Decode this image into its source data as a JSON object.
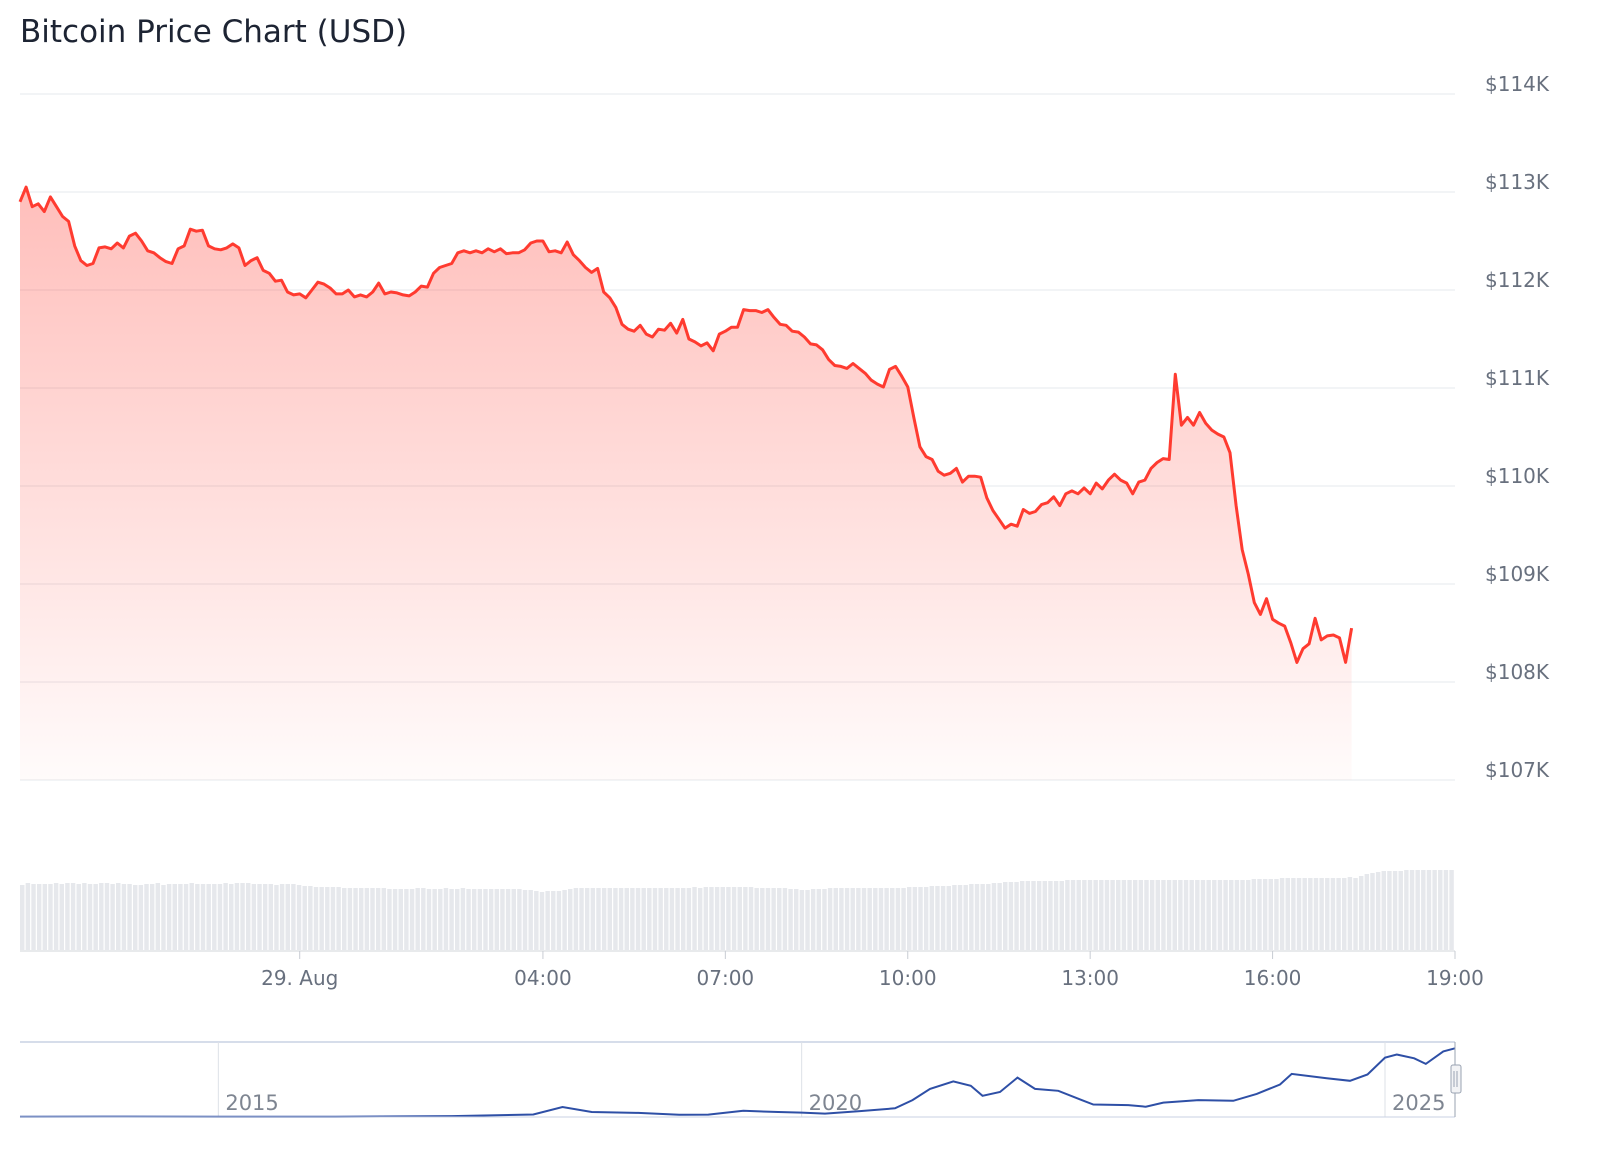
{
  "chart_data": {
    "type": "area",
    "title": "Bitcoin Price Chart (USD)",
    "currency": "USD",
    "ylim": [
      107000,
      114000
    ],
    "y_ticks": [
      "$107K",
      "$108K",
      "$109K",
      "$110K",
      "$111K",
      "$112K",
      "$113K",
      "$114K"
    ],
    "x_ticks": [
      {
        "label": "29. Aug",
        "t": 0.0
      },
      {
        "label": "04:00",
        "t": 4.0
      },
      {
        "label": "07:00",
        "t": 7.0
      },
      {
        "label": "10:00",
        "t": 10.0
      },
      {
        "label": "13:00",
        "t": 13.0
      },
      {
        "label": "16:00",
        "t": 16.0
      },
      {
        "label": "19:00",
        "t": 19.0
      }
    ],
    "x_unit": "hours",
    "x_start": -4.6,
    "x_end": 19.0,
    "grid": true,
    "series": [
      {
        "color": "#ff3b30",
        "points": [
          [
            -4.6,
            112900
          ],
          [
            -4.5,
            113050
          ],
          [
            -4.4,
            112850
          ],
          [
            -4.3,
            112880
          ],
          [
            -4.2,
            112800
          ],
          [
            -4.1,
            112950
          ],
          [
            -4.0,
            112850
          ],
          [
            -3.9,
            112750
          ],
          [
            -3.8,
            112700
          ],
          [
            -3.7,
            112450
          ],
          [
            -3.6,
            112300
          ],
          [
            -3.5,
            112250
          ],
          [
            -3.4,
            112270
          ],
          [
            -3.3,
            112430
          ],
          [
            -3.2,
            112440
          ],
          [
            -3.1,
            112420
          ],
          [
            -3.0,
            112480
          ],
          [
            -2.9,
            112430
          ],
          [
            -2.8,
            112550
          ],
          [
            -2.7,
            112580
          ],
          [
            -2.6,
            112500
          ],
          [
            -2.5,
            112400
          ],
          [
            -2.4,
            112380
          ],
          [
            -2.3,
            112330
          ],
          [
            -2.2,
            112290
          ],
          [
            -2.1,
            112270
          ],
          [
            -2.0,
            112420
          ],
          [
            -1.9,
            112450
          ],
          [
            -1.8,
            112620
          ],
          [
            -1.7,
            112600
          ],
          [
            -1.6,
            112610
          ],
          [
            -1.5,
            112450
          ],
          [
            -1.4,
            112420
          ],
          [
            -1.3,
            112410
          ],
          [
            -1.2,
            112430
          ],
          [
            -1.1,
            112470
          ],
          [
            -1.0,
            112430
          ],
          [
            -0.9,
            112250
          ],
          [
            -0.8,
            112300
          ],
          [
            -0.7,
            112330
          ],
          [
            -0.6,
            112200
          ],
          [
            -0.5,
            112170
          ],
          [
            -0.4,
            112090
          ],
          [
            -0.3,
            112100
          ],
          [
            -0.2,
            111980
          ],
          [
            -0.1,
            111950
          ],
          [
            0.0,
            111960
          ],
          [
            0.1,
            111920
          ],
          [
            0.2,
            112000
          ],
          [
            0.3,
            112080
          ],
          [
            0.4,
            112060
          ],
          [
            0.5,
            112020
          ],
          [
            0.6,
            111960
          ],
          [
            0.7,
            111960
          ],
          [
            0.8,
            112000
          ],
          [
            0.9,
            111930
          ],
          [
            1.0,
            111950
          ],
          [
            1.1,
            111930
          ],
          [
            1.2,
            111980
          ],
          [
            1.3,
            112070
          ],
          [
            1.4,
            111960
          ],
          [
            1.5,
            111980
          ],
          [
            1.6,
            111970
          ],
          [
            1.7,
            111950
          ],
          [
            1.8,
            111940
          ],
          [
            1.9,
            111980
          ],
          [
            2.0,
            112040
          ],
          [
            2.1,
            112030
          ],
          [
            2.2,
            112170
          ],
          [
            2.3,
            112230
          ],
          [
            2.4,
            112250
          ],
          [
            2.5,
            112270
          ],
          [
            2.6,
            112380
          ],
          [
            2.7,
            112400
          ],
          [
            2.8,
            112380
          ],
          [
            2.9,
            112400
          ],
          [
            3.0,
            112380
          ],
          [
            3.1,
            112420
          ],
          [
            3.2,
            112390
          ],
          [
            3.3,
            112420
          ],
          [
            3.4,
            112370
          ],
          [
            3.5,
            112380
          ],
          [
            3.6,
            112380
          ],
          [
            3.7,
            112410
          ],
          [
            3.8,
            112480
          ],
          [
            3.9,
            112500
          ],
          [
            4.0,
            112500
          ],
          [
            4.1,
            112390
          ],
          [
            4.2,
            112400
          ],
          [
            4.3,
            112380
          ],
          [
            4.4,
            112490
          ],
          [
            4.5,
            112360
          ],
          [
            4.6,
            112300
          ],
          [
            4.7,
            112230
          ],
          [
            4.8,
            112180
          ],
          [
            4.9,
            112220
          ],
          [
            5.0,
            111980
          ],
          [
            5.1,
            111920
          ],
          [
            5.2,
            111820
          ],
          [
            5.3,
            111650
          ],
          [
            5.4,
            111600
          ],
          [
            5.5,
            111580
          ],
          [
            5.6,
            111640
          ],
          [
            5.7,
            111550
          ],
          [
            5.8,
            111520
          ],
          [
            5.9,
            111600
          ],
          [
            6.0,
            111590
          ],
          [
            6.1,
            111660
          ],
          [
            6.2,
            111560
          ],
          [
            6.3,
            111700
          ],
          [
            6.4,
            111500
          ],
          [
            6.5,
            111470
          ],
          [
            6.6,
            111430
          ],
          [
            6.7,
            111460
          ],
          [
            6.8,
            111380
          ],
          [
            6.9,
            111550
          ],
          [
            7.0,
            111580
          ],
          [
            7.1,
            111620
          ],
          [
            7.2,
            111620
          ],
          [
            7.3,
            111800
          ],
          [
            7.4,
            111790
          ],
          [
            7.5,
            111790
          ],
          [
            7.6,
            111770
          ],
          [
            7.7,
            111800
          ],
          [
            7.8,
            111720
          ],
          [
            7.9,
            111650
          ],
          [
            8.0,
            111640
          ],
          [
            8.1,
            111580
          ],
          [
            8.2,
            111570
          ],
          [
            8.3,
            111520
          ],
          [
            8.4,
            111450
          ],
          [
            8.5,
            111440
          ],
          [
            8.6,
            111390
          ],
          [
            8.7,
            111290
          ],
          [
            8.8,
            111230
          ],
          [
            8.9,
            111220
          ],
          [
            9.0,
            111200
          ],
          [
            9.1,
            111250
          ],
          [
            9.2,
            111200
          ],
          [
            9.3,
            111150
          ],
          [
            9.4,
            111080
          ],
          [
            9.5,
            111040
          ],
          [
            9.6,
            111010
          ],
          [
            9.7,
            111190
          ],
          [
            9.8,
            111220
          ],
          [
            9.9,
            111120
          ],
          [
            10.0,
            111010
          ],
          [
            10.1,
            110700
          ],
          [
            10.2,
            110400
          ],
          [
            10.3,
            110300
          ],
          [
            10.4,
            110270
          ],
          [
            10.5,
            110150
          ],
          [
            10.6,
            110110
          ],
          [
            10.7,
            110130
          ],
          [
            10.8,
            110180
          ],
          [
            10.9,
            110040
          ],
          [
            11.0,
            110100
          ],
          [
            11.1,
            110100
          ],
          [
            11.2,
            110090
          ],
          [
            11.3,
            109880
          ],
          [
            11.4,
            109750
          ],
          [
            11.5,
            109660
          ],
          [
            11.6,
            109570
          ],
          [
            11.7,
            109610
          ],
          [
            11.8,
            109590
          ],
          [
            11.9,
            109760
          ],
          [
            12.0,
            109720
          ],
          [
            12.1,
            109740
          ],
          [
            12.2,
            109810
          ],
          [
            12.3,
            109830
          ],
          [
            12.4,
            109890
          ],
          [
            12.5,
            109800
          ],
          [
            12.6,
            109920
          ],
          [
            12.7,
            109950
          ],
          [
            12.8,
            109920
          ],
          [
            12.9,
            109980
          ],
          [
            13.0,
            109920
          ],
          [
            13.1,
            110030
          ],
          [
            13.2,
            109970
          ],
          [
            13.3,
            110060
          ],
          [
            13.4,
            110120
          ],
          [
            13.5,
            110060
          ],
          [
            13.6,
            110030
          ],
          [
            13.7,
            109920
          ],
          [
            13.8,
            110040
          ],
          [
            13.9,
            110060
          ],
          [
            14.0,
            110180
          ],
          [
            14.1,
            110240
          ],
          [
            14.2,
            110280
          ],
          [
            14.3,
            110270
          ],
          [
            14.4,
            111140
          ],
          [
            14.5,
            110620
          ],
          [
            14.6,
            110700
          ],
          [
            14.7,
            110620
          ],
          [
            14.8,
            110750
          ],
          [
            14.9,
            110640
          ],
          [
            15.0,
            110570
          ],
          [
            15.1,
            110530
          ],
          [
            15.2,
            110500
          ],
          [
            15.3,
            110340
          ],
          [
            15.4,
            109800
          ],
          [
            15.5,
            109350
          ],
          [
            15.6,
            109100
          ],
          [
            15.7,
            108810
          ],
          [
            15.8,
            108690
          ],
          [
            15.9,
            108850
          ],
          [
            16.0,
            108640
          ],
          [
            16.1,
            108600
          ],
          [
            16.2,
            108570
          ],
          [
            16.3,
            108400
          ],
          [
            16.4,
            108200
          ],
          [
            16.5,
            108340
          ],
          [
            16.6,
            108390
          ],
          [
            16.7,
            108650
          ],
          [
            16.8,
            108430
          ],
          [
            16.9,
            108470
          ],
          [
            17.0,
            108480
          ],
          [
            17.1,
            108450
          ],
          [
            17.2,
            108200
          ],
          [
            17.3,
            108550
          ]
        ]
      }
    ],
    "volume_series": [
      65,
      67,
      66,
      66,
      66,
      66,
      67,
      66,
      67,
      67,
      66,
      67,
      66,
      66,
      67,
      67,
      66,
      67,
      66,
      66,
      65,
      65,
      66,
      66,
      67,
      65,
      66,
      66,
      66,
      66,
      67,
      66,
      66,
      66,
      66,
      66,
      67,
      66,
      67,
      67,
      67,
      66,
      66,
      66,
      66,
      65,
      66,
      66,
      66,
      65,
      64,
      64,
      63,
      63,
      63,
      63,
      63,
      62,
      62,
      62,
      62,
      62,
      62,
      62,
      62,
      61,
      61,
      61,
      61,
      61,
      62,
      62,
      61,
      61,
      61,
      62,
      61,
      61,
      62,
      61,
      61,
      61,
      61,
      61,
      61,
      61,
      61,
      61,
      61,
      60,
      60,
      59,
      58,
      59,
      59,
      59,
      60,
      61,
      62,
      62,
      62,
      62,
      62,
      62,
      62,
      62,
      62,
      62,
      62,
      62,
      62,
      62,
      62,
      62,
      62,
      62,
      62,
      62,
      62,
      63,
      62,
      63,
      63,
      63,
      63,
      63,
      63,
      63,
      63,
      63,
      62,
      62,
      62,
      62,
      62,
      62,
      61,
      61,
      60,
      60,
      61,
      61,
      61,
      62,
      62,
      62,
      62,
      62,
      62,
      62,
      62,
      62,
      62,
      62,
      62,
      62,
      62,
      63,
      63,
      63,
      63,
      64,
      64,
      64,
      64,
      65,
      65,
      65,
      66,
      66,
      66,
      66,
      67,
      67,
      68,
      68,
      68,
      69,
      69,
      69,
      69,
      69,
      69,
      69,
      69,
      70,
      70,
      70,
      70,
      70,
      70,
      70,
      70,
      70,
      70,
      70,
      70,
      70,
      70,
      70,
      70,
      70,
      70,
      70,
      70,
      70,
      70,
      70,
      70,
      70,
      70,
      70,
      70,
      70,
      70,
      70,
      70,
      70,
      71,
      71,
      71,
      71,
      71,
      72,
      72,
      72,
      72,
      72,
      72,
      72,
      72,
      72,
      72,
      72,
      72,
      73,
      72,
      74,
      76,
      77,
      78,
      79,
      79,
      79,
      79,
      80,
      80,
      80,
      80,
      80,
      80,
      80,
      80,
      80
    ],
    "navigator": {
      "x_ticks": [
        {
          "label": "2015",
          "t": 2015
        },
        {
          "label": "2020",
          "t": 2020
        },
        {
          "label": "2025",
          "t": 2025
        }
      ],
      "x_start": 2013.3,
      "x_end": 2025.6,
      "series": [
        [
          2013.3,
          0.3
        ],
        [
          2014.0,
          0.6
        ],
        [
          2015.0,
          0.3
        ],
        [
          2016.0,
          0.5
        ],
        [
          2017.0,
          1.5
        ],
        [
          2017.7,
          4.0
        ],
        [
          2017.95,
          16.0
        ],
        [
          2018.2,
          8.0
        ],
        [
          2018.6,
          6.5
        ],
        [
          2018.95,
          3.5
        ],
        [
          2019.2,
          3.8
        ],
        [
          2019.5,
          10.0
        ],
        [
          2019.8,
          8.0
        ],
        [
          2020.0,
          7.0
        ],
        [
          2020.2,
          5.5
        ],
        [
          2020.5,
          9.5
        ],
        [
          2020.8,
          14.0
        ],
        [
          2020.95,
          27.0
        ],
        [
          2021.1,
          45.0
        ],
        [
          2021.3,
          57.0
        ],
        [
          2021.45,
          50.0
        ],
        [
          2021.55,
          34.0
        ],
        [
          2021.7,
          40.0
        ],
        [
          2021.85,
          63.0
        ],
        [
          2022.0,
          45.0
        ],
        [
          2022.2,
          42.0
        ],
        [
          2022.4,
          27.0
        ],
        [
          2022.5,
          20.0
        ],
        [
          2022.8,
          19.0
        ],
        [
          2022.95,
          16.5
        ],
        [
          2023.1,
          23.0
        ],
        [
          2023.4,
          27.0
        ],
        [
          2023.7,
          26.0
        ],
        [
          2023.9,
          37.0
        ],
        [
          2024.1,
          52.0
        ],
        [
          2024.2,
          69.0
        ],
        [
          2024.5,
          62.0
        ],
        [
          2024.7,
          58.0
        ],
        [
          2024.85,
          68.0
        ],
        [
          2025.0,
          95.0
        ],
        [
          2025.1,
          100.0
        ],
        [
          2025.25,
          94.0
        ],
        [
          2025.35,
          85.0
        ],
        [
          2025.5,
          105.0
        ],
        [
          2025.6,
          110.0
        ]
      ],
      "ylim": [
        0,
        120
      ]
    }
  }
}
